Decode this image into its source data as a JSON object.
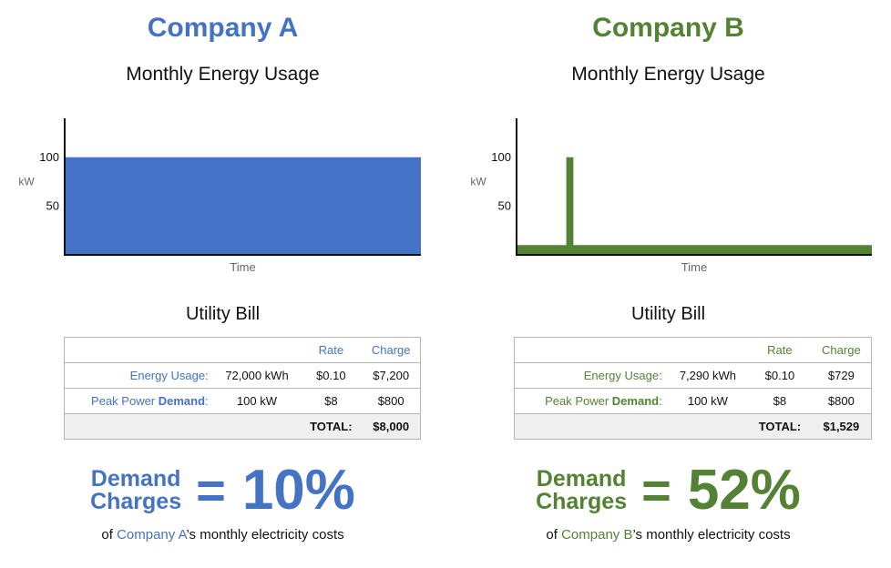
{
  "colors": {
    "company_a": "#4472c4",
    "company_b": "#548235"
  },
  "panels": [
    {
      "company": "Company A",
      "chart_title": "Monthly Energy Usage",
      "bill": {
        "title": "Utility Bill",
        "headers": {
          "rate": "Rate",
          "charge": "Charge"
        },
        "rows": [
          {
            "label": "Energy Usage:",
            "qty": "72,000 kWh",
            "rate": "$0.10",
            "charge": "$7,200"
          },
          {
            "label_prefix": "Peak Power ",
            "label_bold": "Demand",
            "label_suffix": ":",
            "qty": "100 kW",
            "rate": "$8",
            "charge": "$800"
          }
        ],
        "total_label": "TOTAL:",
        "total_value": "$8,000"
      },
      "summary": {
        "line1": "Demand",
        "line2": "Charges",
        "equals": "=",
        "percent": "10%"
      },
      "footnote": {
        "pre": "of ",
        "company": "Company A",
        "post": "’s monthly electricity costs"
      }
    },
    {
      "company": "Company B",
      "chart_title": "Monthly Energy Usage",
      "bill": {
        "title": "Utility Bill",
        "headers": {
          "rate": "Rate",
          "charge": "Charge"
        },
        "rows": [
          {
            "label": "Energy Usage:",
            "qty": "7,290 kWh",
            "rate": "$0.10",
            "charge": "$729"
          },
          {
            "label_prefix": "Peak Power ",
            "label_bold": "Demand",
            "label_suffix": ":",
            "qty": "100 kW",
            "rate": "$8",
            "charge": "$800"
          }
        ],
        "total_label": "TOTAL:",
        "total_value": "$1,529"
      },
      "summary": {
        "line1": "Demand",
        "line2": "Charges",
        "equals": "=",
        "percent": "52%"
      },
      "footnote": {
        "pre": "of ",
        "company": "Company B",
        "post": "’s monthly electricity costs"
      }
    }
  ],
  "chart_data": [
    {
      "type": "area",
      "title": "Monthly Energy Usage",
      "xlabel": "Time",
      "ylabel": "kW",
      "yticks": [
        100,
        50
      ],
      "ylim": [
        0,
        125
      ],
      "xlim": [
        0,
        1
      ],
      "grid": false,
      "series": [
        {
          "x": [
            0,
            1
          ],
          "y": [
            100,
            100
          ]
        }
      ]
    },
    {
      "type": "area",
      "title": "Monthly Energy Usage",
      "xlabel": "Time",
      "ylabel": "kW",
      "yticks": [
        100,
        50
      ],
      "ylim": [
        0,
        125
      ],
      "xlim": [
        0,
        1
      ],
      "grid": false,
      "series": [
        {
          "x": [
            0,
            0.14,
            0.14,
            0.16,
            0.16,
            1
          ],
          "y": [
            10,
            10,
            100,
            100,
            10,
            10
          ]
        }
      ]
    }
  ]
}
